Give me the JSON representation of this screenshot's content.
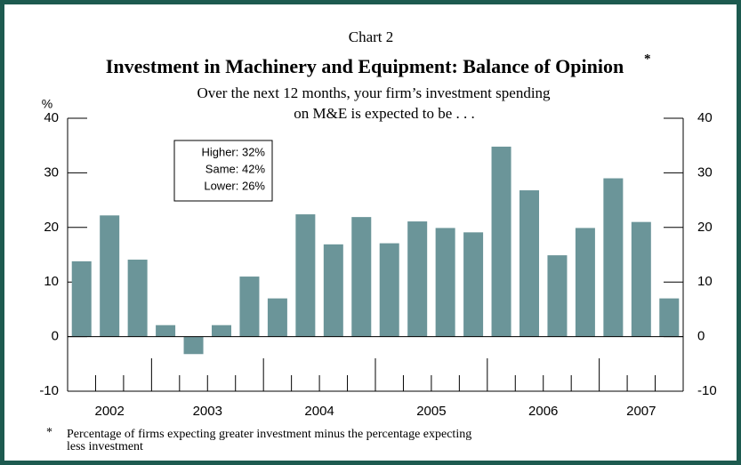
{
  "chart_data": {
    "type": "bar",
    "subtitle_top": "Chart 2",
    "title": "Investment in Machinery and Equipment: Balance of Opinion",
    "title_marker": "*",
    "subtitle": [
      "Over the next 12 months, your firm’s investment spending",
      "on M&E is expected to be . . ."
    ],
    "y_unit": "%",
    "categories": [
      null,
      null,
      null,
      null,
      null,
      null,
      null,
      null,
      null,
      null,
      null,
      null,
      null,
      null,
      null,
      null,
      null,
      null,
      null,
      null,
      null,
      null
    ],
    "values": [
      13.8,
      22.2,
      14.1,
      2.1,
      -3.2,
      2.1,
      11.0,
      7.0,
      22.4,
      16.9,
      21.9,
      17.1,
      21.1,
      19.9,
      19.1,
      34.8,
      26.8,
      14.9,
      19.9,
      29.0,
      21.0,
      7.0
    ],
    "color": "#6b9599",
    "year_labels": [
      "2002",
      "2003",
      "2004",
      "2005",
      "2006",
      "2007"
    ],
    "ylim": [
      -10,
      40
    ],
    "yticks": [
      -10,
      0,
      10,
      20,
      30,
      40
    ],
    "annotations": [
      "Higher: 32%",
      "Same: 42%",
      "Lower: 26%"
    ],
    "footnote": [
      "*",
      "Percentage of firms expecting greater investment minus the percentage expecting",
      "less investment"
    ]
  }
}
